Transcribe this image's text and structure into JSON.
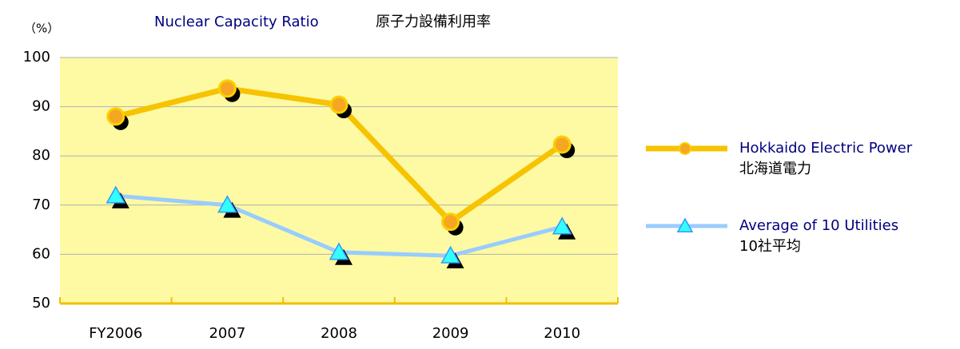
{
  "chart_data": {
    "type": "line",
    "title": "Nuclear Capacity Ratio",
    "subtitle": "原子力設備利用率",
    "y_label": "（%）",
    "categories": [
      "FY2006",
      "2007",
      "2008",
      "2009",
      "2010"
    ],
    "series": [
      {
        "name": "Hokkaido Electric Power",
        "name_ja": "北海道電力",
        "color": "#f7c300",
        "marker": "circle",
        "values": [
          88.0,
          93.7,
          90.4,
          66.6,
          82.3
        ]
      },
      {
        "name": "Average of 10 Utilities",
        "name_ja": "10社平均",
        "color": "#99ccff",
        "marker": "triangle",
        "values": [
          71.9,
          70.0,
          60.4,
          59.7,
          65.6
        ]
      }
    ],
    "ylim": [
      50,
      100
    ],
    "yticks": [
      50,
      60,
      70,
      80,
      90,
      100
    ],
    "grid": true,
    "plot_background": "#fdfaa3"
  }
}
